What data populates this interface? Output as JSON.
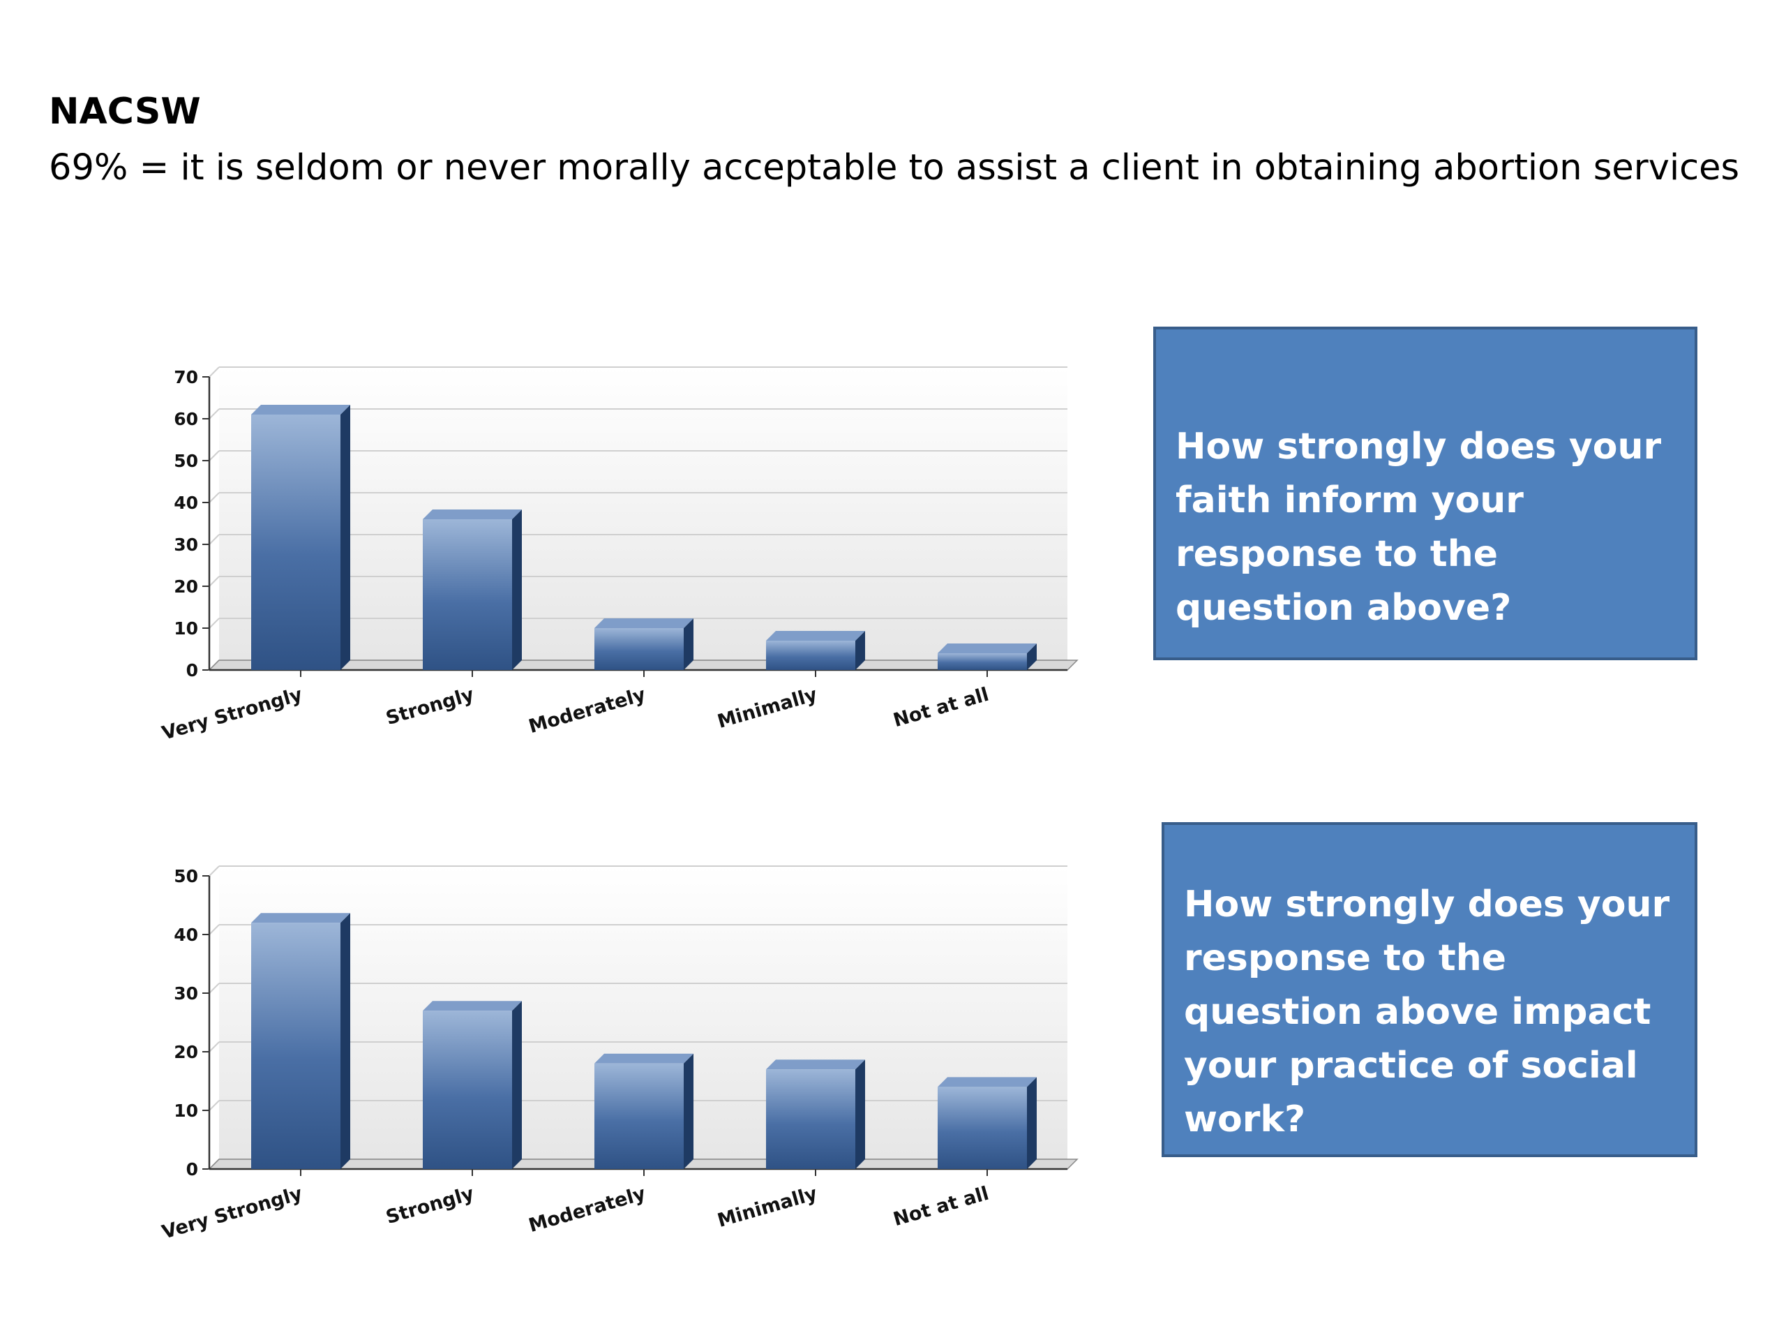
{
  "header": {
    "title": "NACSW",
    "subtitle": "69% = it is seldom or never morally acceptable to assist a client in obtaining abortion services"
  },
  "questions": [
    "How strongly does your faith inform your response to the question above?",
    "How strongly does your response to the question above impact your practice of social work?"
  ],
  "colors": {
    "bar_light": "#9db6d8",
    "bar_dark": "#2f5285",
    "bar_side": "#1e3a63",
    "box_fill": "#4f81bd",
    "box_border": "#385d8a"
  },
  "chart_data": [
    {
      "type": "bar",
      "categories": [
        "Very Strongly",
        "Strongly",
        "Moderately",
        "Minimally",
        "Not at all"
      ],
      "values": [
        61,
        36,
        10,
        7,
        4
      ],
      "title": "",
      "xlabel": "",
      "ylabel": "",
      "ylim": [
        0,
        70
      ],
      "yticks": [
        0,
        10,
        20,
        30,
        40,
        50,
        60,
        70
      ],
      "grid": true,
      "legend": "none"
    },
    {
      "type": "bar",
      "categories": [
        "Very Strongly",
        "Strongly",
        "Moderately",
        "Minimally",
        "Not at all"
      ],
      "values": [
        42,
        27,
        18,
        17,
        14
      ],
      "title": "",
      "xlabel": "",
      "ylabel": "",
      "ylim": [
        0,
        50
      ],
      "yticks": [
        0,
        10,
        20,
        30,
        40,
        50
      ],
      "grid": true,
      "legend": "none"
    }
  ]
}
